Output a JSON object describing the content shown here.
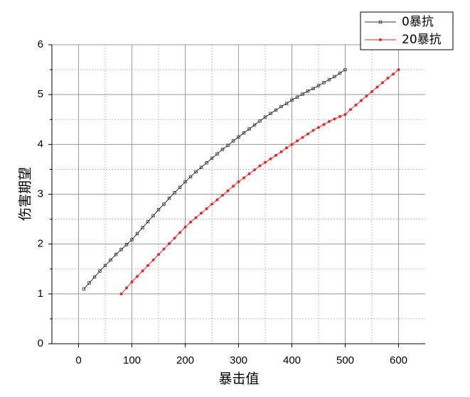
{
  "chart_data": {
    "type": "line",
    "x_label": "暴击值",
    "y_label": "伤害期望",
    "xlim": [
      -50,
      650
    ],
    "ylim": [
      0,
      6
    ],
    "xticks": [
      0,
      100,
      200,
      300,
      400,
      500,
      600
    ],
    "yticks": [
      0,
      1,
      2,
      3,
      4,
      5,
      6
    ],
    "grid": true,
    "legend": "top-right",
    "series": [
      {
        "name": "0暴抗",
        "color": "#333333",
        "marker": "square",
        "x": [
          10,
          20,
          30,
          40,
          50,
          60,
          70,
          80,
          90,
          100,
          110,
          120,
          130,
          140,
          150,
          160,
          170,
          180,
          190,
          200,
          210,
          220,
          230,
          240,
          250,
          260,
          270,
          280,
          290,
          300,
          310,
          320,
          330,
          340,
          350,
          360,
          370,
          380,
          390,
          400,
          410,
          420,
          430,
          440,
          450,
          460,
          470,
          480,
          490,
          500
        ],
        "values": [
          1.1,
          1.22,
          1.34,
          1.46,
          1.57,
          1.68,
          1.79,
          1.89,
          1.99,
          2.09,
          2.21,
          2.33,
          2.45,
          2.57,
          2.69,
          2.8,
          2.92,
          3.03,
          3.14,
          3.25,
          3.35,
          3.45,
          3.54,
          3.63,
          3.72,
          3.81,
          3.9,
          3.98,
          4.07,
          4.15,
          4.23,
          4.31,
          4.39,
          4.47,
          4.55,
          4.62,
          4.69,
          4.76,
          4.82,
          4.89,
          4.95,
          5.01,
          5.07,
          5.12,
          5.18,
          5.24,
          5.3,
          5.36,
          5.43,
          5.5
        ]
      },
      {
        "name": "20暴抗",
        "color": "#e8262a",
        "marker": "circle",
        "x": [
          80,
          90,
          100,
          110,
          120,
          130,
          140,
          150,
          160,
          170,
          180,
          190,
          200,
          210,
          220,
          230,
          240,
          250,
          260,
          270,
          280,
          290,
          300,
          310,
          320,
          330,
          340,
          350,
          360,
          370,
          380,
          390,
          400,
          410,
          420,
          430,
          440,
          450,
          460,
          470,
          480,
          490,
          500,
          510,
          520,
          530,
          540,
          550,
          560,
          570,
          580,
          590,
          600
        ],
        "values": [
          1.0,
          1.12,
          1.24,
          1.35,
          1.46,
          1.57,
          1.68,
          1.79,
          1.9,
          2.01,
          2.12,
          2.23,
          2.34,
          2.44,
          2.53,
          2.62,
          2.71,
          2.8,
          2.89,
          2.98,
          3.07,
          3.16,
          3.25,
          3.33,
          3.41,
          3.49,
          3.57,
          3.64,
          3.71,
          3.78,
          3.85,
          3.93,
          4.0,
          4.07,
          4.14,
          4.21,
          4.28,
          4.34,
          4.4,
          4.46,
          4.51,
          4.56,
          4.6,
          4.7,
          4.79,
          4.88,
          4.97,
          5.06,
          5.15,
          5.24,
          5.33,
          5.41,
          5.5
        ]
      }
    ]
  }
}
